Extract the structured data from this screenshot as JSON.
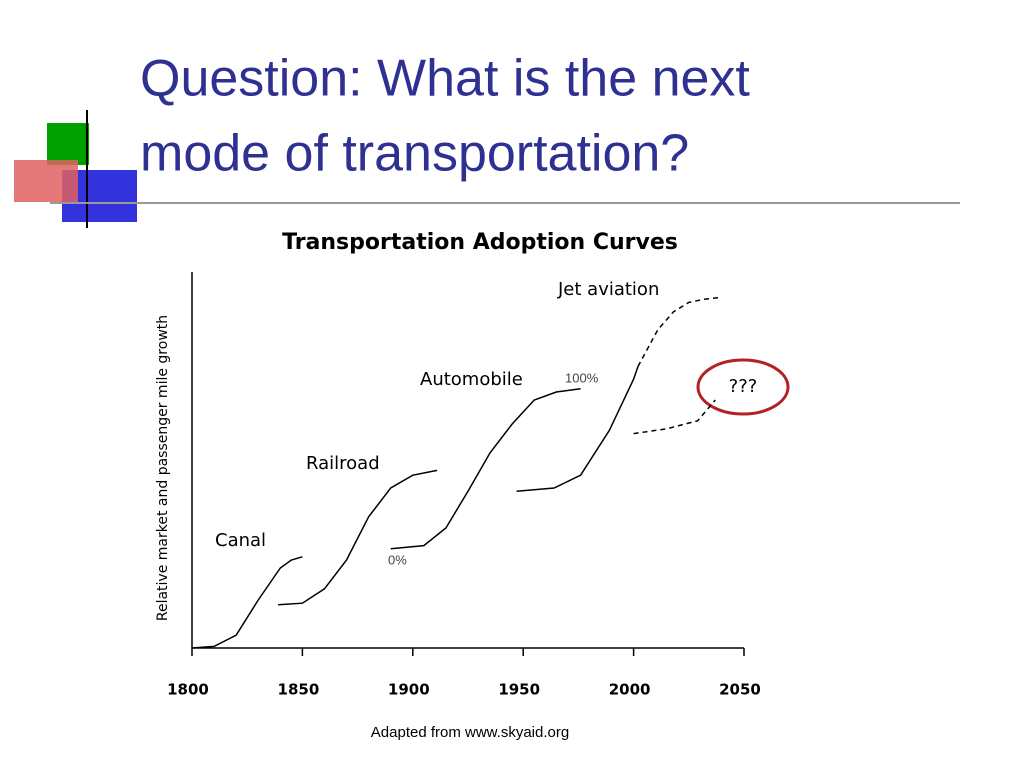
{
  "slide": {
    "title_lines": [
      "Question: What is the next",
      "mode of transportation?"
    ],
    "source": "Adapted from www.skyaid.org"
  },
  "chart_data": {
    "type": "line",
    "title": "Transportation Adoption Curves",
    "y_label": "Relative market and passenger mile growth",
    "xlim": [
      1800,
      2050
    ],
    "xticks": [
      1800,
      1850,
      1900,
      1950,
      2000,
      2050
    ],
    "ylim": [
      0,
      235
    ],
    "color": "#000000",
    "series": [
      {
        "name": "Canal",
        "x": [
          1800,
          1810,
          1820,
          1830,
          1840,
          1845,
          1850
        ],
        "values": [
          0,
          1,
          8,
          30,
          50,
          55,
          57
        ]
      },
      {
        "name": "Railroad",
        "x": [
          1839,
          1850,
          1860,
          1870,
          1880,
          1890,
          1900,
          1911
        ],
        "values": [
          27,
          28,
          37,
          55,
          82,
          100,
          108,
          111
        ]
      },
      {
        "name": "Automobile",
        "x": [
          1890,
          1905,
          1915,
          1925,
          1935,
          1945,
          1955,
          1965,
          1976
        ],
        "values": [
          62,
          64,
          75,
          98,
          122,
          140,
          155,
          160,
          162
        ]
      },
      {
        "name": "Jet aviation",
        "x": [
          1947,
          1964,
          1976,
          1989,
          2000,
          2002
        ],
        "values": [
          98,
          100,
          108,
          136,
          168,
          176
        ]
      },
      {
        "dashed": true,
        "x": [
          2002,
          2011,
          2018,
          2025,
          2032,
          2039
        ],
        "values": [
          176,
          199,
          210,
          216,
          218,
          219
        ]
      },
      {
        "name": "???",
        "dashed": true,
        "x": [
          2000,
          2015,
          2029,
          2037
        ],
        "values": [
          134,
          137,
          142,
          155
        ]
      }
    ],
    "annotations": [
      "0%",
      "100%"
    ]
  }
}
